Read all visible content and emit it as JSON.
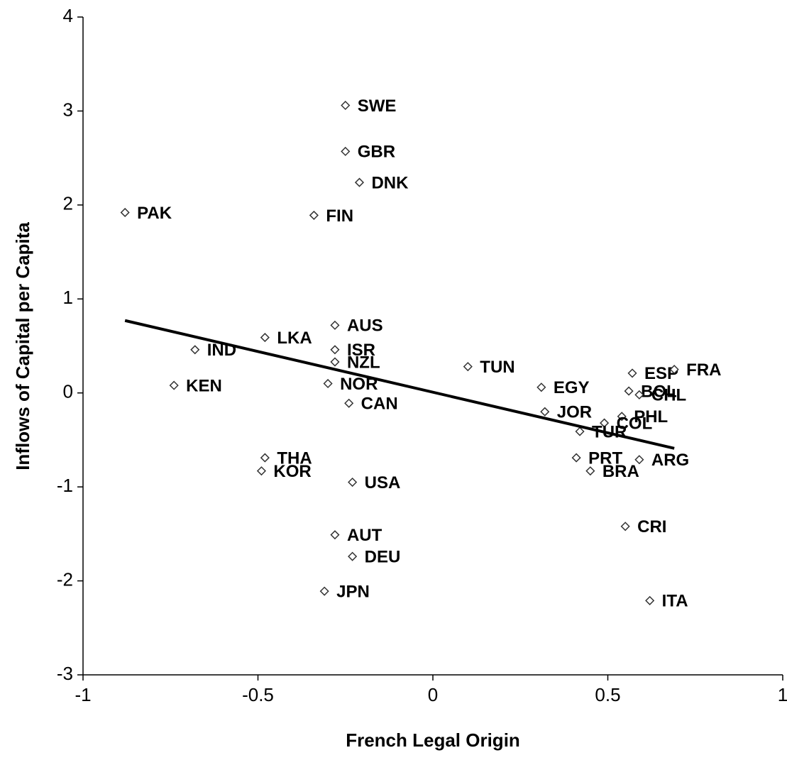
{
  "chart_data": {
    "type": "scatter",
    "x_label": "French Legal Origin",
    "y_label": "Inflows of Capital per Capita",
    "xlim": [
      -1,
      1
    ],
    "xticks": [
      -1,
      -0.5,
      0,
      0.5,
      1
    ],
    "ylim": [
      -3,
      4
    ],
    "yticks": [
      -3,
      -2,
      -1,
      0,
      1,
      2,
      3,
      4
    ],
    "grid": false,
    "marker_color": "#333333",
    "points": [
      {
        "label": "SWE",
        "x": -0.25,
        "y": 3.06
      },
      {
        "label": "GBR",
        "x": -0.25,
        "y": 2.57
      },
      {
        "label": "DNK",
        "x": -0.21,
        "y": 2.24
      },
      {
        "label": "PAK",
        "x": -0.88,
        "y": 1.92
      },
      {
        "label": "FIN",
        "x": -0.34,
        "y": 1.89
      },
      {
        "label": "AUS",
        "x": -0.28,
        "y": 0.72
      },
      {
        "label": "LKA",
        "x": -0.48,
        "y": 0.59
      },
      {
        "label": "IND",
        "x": -0.68,
        "y": 0.46
      },
      {
        "label": "ISR",
        "x": -0.28,
        "y": 0.46
      },
      {
        "label": "NZL",
        "x": -0.28,
        "y": 0.33
      },
      {
        "label": "TUN",
        "x": 0.1,
        "y": 0.28
      },
      {
        "label": "KEN",
        "x": -0.74,
        "y": 0.08
      },
      {
        "label": "NOR",
        "x": -0.3,
        "y": 0.1
      },
      {
        "label": "EGY",
        "x": 0.31,
        "y": 0.06
      },
      {
        "label": "ESP",
        "x": 0.57,
        "y": 0.21
      },
      {
        "label": "FRA",
        "x": 0.69,
        "y": 0.25
      },
      {
        "label": "BOL",
        "x": 0.56,
        "y": 0.02
      },
      {
        "label": "CHL",
        "x": 0.59,
        "y": -0.02
      },
      {
        "label": "CAN",
        "x": -0.24,
        "y": -0.11
      },
      {
        "label": "JOR",
        "x": 0.32,
        "y": -0.2
      },
      {
        "label": "PHL",
        "x": 0.54,
        "y": -0.25
      },
      {
        "label": "COL",
        "x": 0.49,
        "y": -0.32
      },
      {
        "label": "TUR",
        "x": 0.42,
        "y": -0.41
      },
      {
        "label": "THA",
        "x": -0.48,
        "y": -0.69
      },
      {
        "label": "PRT",
        "x": 0.41,
        "y": -0.69
      },
      {
        "label": "ARG",
        "x": 0.59,
        "y": -0.71
      },
      {
        "label": "KOR",
        "x": -0.49,
        "y": -0.83
      },
      {
        "label": "BRA",
        "x": 0.45,
        "y": -0.83
      },
      {
        "label": "USA",
        "x": -0.23,
        "y": -0.95
      },
      {
        "label": "CRI",
        "x": 0.55,
        "y": -1.42
      },
      {
        "label": "AUT",
        "x": -0.28,
        "y": -1.51
      },
      {
        "label": "DEU",
        "x": -0.23,
        "y": -1.74
      },
      {
        "label": "JPN",
        "x": -0.31,
        "y": -2.11
      },
      {
        "label": "ITA",
        "x": 0.62,
        "y": -2.21
      }
    ],
    "trend_line": {
      "x": [
        -0.88,
        0.69
      ],
      "y": [
        0.77,
        -0.59
      ],
      "color": "#000000"
    }
  }
}
